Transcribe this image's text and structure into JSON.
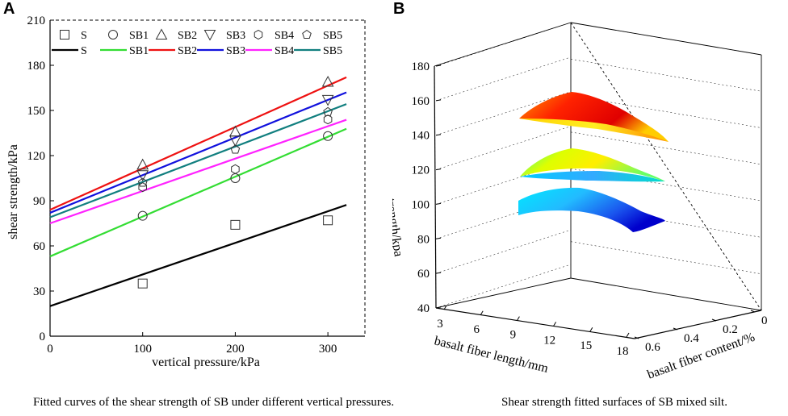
{
  "panels": {
    "a_label": "A",
    "b_label": "B"
  },
  "captions": {
    "left": "Fitted curves of the shear strength of SB under different vertical pressures.",
    "right": "Shear strength fitted surfaces of SB mixed silt."
  },
  "chart_data": [
    {
      "type": "scatter",
      "panel": "A",
      "xlabel": "vertical pressure/kPa",
      "ylabel": "shear strength/kPa",
      "xlim": [
        0,
        340
      ],
      "ylim": [
        0,
        210
      ],
      "xticks": [
        0,
        100,
        200,
        300
      ],
      "yticks": [
        0,
        30,
        60,
        90,
        120,
        150,
        180,
        210
      ],
      "legend_position": "top",
      "series": [
        {
          "name": "S",
          "marker": "square",
          "color": "#000000",
          "points": [
            [
              100,
              35
            ],
            [
              200,
              74
            ],
            [
              300,
              77
            ]
          ],
          "fit": {
            "intercept": 20,
            "slope": 0.21,
            "x_end": 320
          }
        },
        {
          "name": "SB1",
          "marker": "circle",
          "color": "#33dd33",
          "points": [
            [
              100,
              80
            ],
            [
              200,
              105
            ],
            [
              300,
              133
            ]
          ],
          "fit": {
            "intercept": 53,
            "slope": 0.265,
            "x_end": 320
          }
        },
        {
          "name": "SB2",
          "marker": "triangle-up",
          "color": "#ee1111",
          "points": [
            [
              100,
              114
            ],
            [
              200,
              136
            ],
            [
              300,
              169
            ]
          ],
          "fit": {
            "intercept": 84,
            "slope": 0.275,
            "x_end": 320
          }
        },
        {
          "name": "SB3",
          "marker": "triangle-down",
          "color": "#1111dd",
          "points": [
            [
              100,
              107
            ],
            [
              200,
              130
            ],
            [
              300,
              157
            ]
          ],
          "fit": {
            "intercept": 82,
            "slope": 0.25,
            "x_end": 320
          }
        },
        {
          "name": "SB4",
          "marker": "hexagon",
          "color": "#ff22ff",
          "points": [
            [
              100,
              99
            ],
            [
              200,
              111
            ],
            [
              300,
              144
            ]
          ],
          "fit": {
            "intercept": 75,
            "slope": 0.215,
            "x_end": 320
          }
        },
        {
          "name": "SB5",
          "marker": "pentagon",
          "color": "#117f7f",
          "points": [
            [
              100,
              102
            ],
            [
              200,
              124
            ],
            [
              300,
              149
            ]
          ],
          "fit": {
            "intercept": 79,
            "slope": 0.235,
            "x_end": 320
          }
        }
      ]
    },
    {
      "type": "surface3d",
      "panel": "B",
      "zlabel": "shear strength/kpa",
      "xlabel": "basalt fiber length/mm",
      "ylabel": "basalt fiber content/%",
      "zlim": [
        40,
        180
      ],
      "zticks": [
        40,
        60,
        80,
        100,
        120,
        140,
        160,
        180
      ],
      "xticks": [
        3,
        6,
        9,
        12,
        15,
        18
      ],
      "yticks": [
        0,
        0.2,
        0.4,
        0.6
      ],
      "yticklabels": [
        "0",
        "0.2",
        "0.4",
        "0.6"
      ],
      "surfaces": [
        {
          "level": "high",
          "z_range": [
            140,
            160
          ],
          "colors": [
            "#ff8c00",
            "#ff2200",
            "#d40000"
          ]
        },
        {
          "level": "middle",
          "z_range": [
            115,
            125
          ],
          "colors": [
            "#ffee00",
            "#88ff44",
            "#00e0ff"
          ]
        },
        {
          "level": "low",
          "z_range": [
            90,
            105
          ],
          "colors": [
            "#00e5ff",
            "#1a8cff",
            "#0000cc"
          ]
        }
      ]
    }
  ]
}
